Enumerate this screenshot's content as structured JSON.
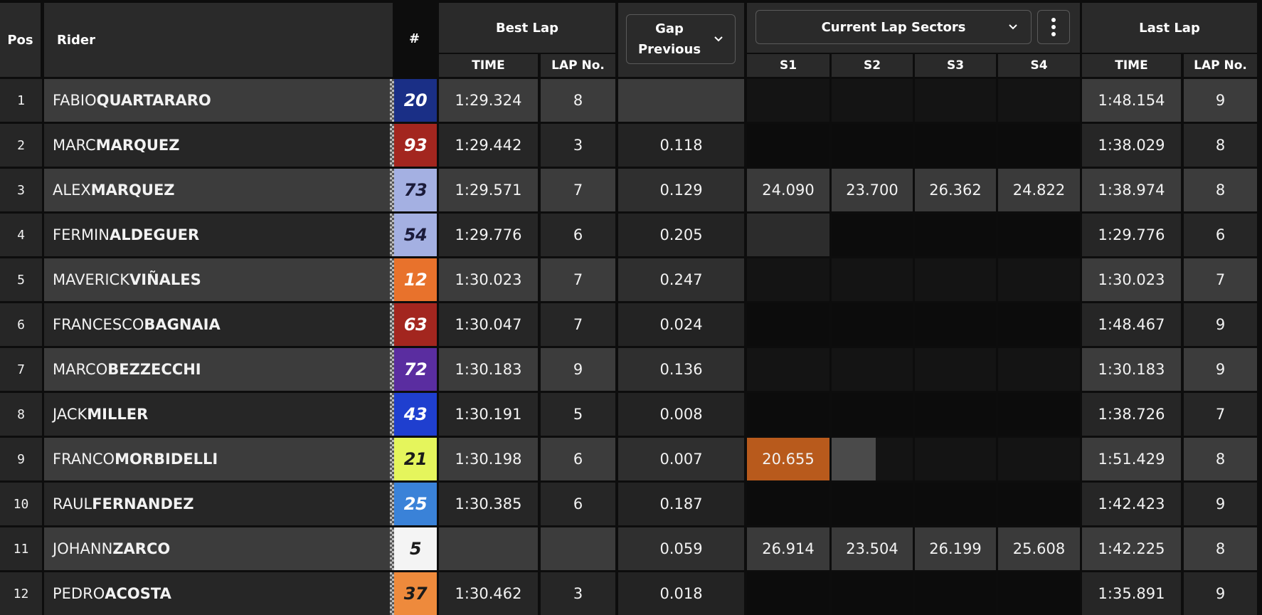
{
  "header": {
    "pos": "Pos",
    "rider": "Rider",
    "number": "#",
    "best_lap": "Best Lap",
    "best_time": "TIME",
    "best_lapno": "LAP No.",
    "gap_line1": "Gap",
    "gap_line2": "Previous",
    "sectors_dropdown": "Current Lap Sectors",
    "s1": "S1",
    "s2": "S2",
    "s3": "S3",
    "s4": "S4",
    "last_lap": "Last Lap",
    "last_time": "TIME",
    "last_lapno": "LAP No."
  },
  "icons": {
    "gap_chevron": "chevron-down-icon",
    "sectors_chevron": "chevron-down-icon",
    "menu": "more-vertical-icon"
  },
  "colors": {
    "personal_best_sector": "#b85a1c",
    "row_dark": "#222222",
    "row_light": "#3a3a3a"
  },
  "rows": [
    {
      "pos": "1",
      "first": "FABIO",
      "last": "QUARTARARO",
      "number": "20",
      "num_bg": "#1a2f86",
      "num_fg": "#ffffff",
      "best_time": "1:29.324",
      "best_lap": "8",
      "gap": "",
      "s1": "",
      "s2": "",
      "s3": "",
      "s4": "",
      "last_time": "1:48.154",
      "last_lap": "9"
    },
    {
      "pos": "2",
      "first": "MARC",
      "last": "MARQUEZ",
      "number": "93",
      "num_bg": "#a3261f",
      "num_fg": "#ffffff",
      "best_time": "1:29.442",
      "best_lap": "3",
      "gap": "0.118",
      "s1": "",
      "s2": "",
      "s3": "",
      "s4": "",
      "last_time": "1:38.029",
      "last_lap": "8"
    },
    {
      "pos": "3",
      "first": "ALEX",
      "last": "MARQUEZ",
      "number": "73",
      "num_bg": "#a4b0e2",
      "num_fg": "#1b1b3a",
      "best_time": "1:29.571",
      "best_lap": "7",
      "gap": "0.129",
      "s1": "24.090",
      "s2": "23.700",
      "s3": "26.362",
      "s4": "24.822",
      "last_time": "1:38.974",
      "last_lap": "8"
    },
    {
      "pos": "4",
      "first": "FERMIN",
      "last": "ALDEGUER",
      "number": "54",
      "num_bg": "#a4b0e2",
      "num_fg": "#1b1b3a",
      "best_time": "1:29.776",
      "best_lap": "6",
      "gap": "0.205",
      "s1": "",
      "s2": "",
      "s3": "",
      "s4": "",
      "last_time": "1:29.776",
      "last_lap": "6"
    },
    {
      "pos": "5",
      "first": "MAVERICK",
      "last": "VIÑALES",
      "number": "12",
      "num_bg": "#e8722c",
      "num_fg": "#ffffff",
      "best_time": "1:30.023",
      "best_lap": "7",
      "gap": "0.247",
      "s1": "",
      "s2": "",
      "s3": "",
      "s4": "",
      "last_time": "1:30.023",
      "last_lap": "7"
    },
    {
      "pos": "6",
      "first": "FRANCESCO",
      "last": "BAGNAIA",
      "number": "63",
      "num_bg": "#a3261f",
      "num_fg": "#ffffff",
      "best_time": "1:30.047",
      "best_lap": "7",
      "gap": "0.024",
      "s1": "",
      "s2": "",
      "s3": "",
      "s4": "",
      "last_time": "1:48.467",
      "last_lap": "9"
    },
    {
      "pos": "7",
      "first": "MARCO",
      "last": "BEZZECCHI",
      "number": "72",
      "num_bg": "#5a2da0",
      "num_fg": "#ffffff",
      "best_time": "1:30.183",
      "best_lap": "9",
      "gap": "0.136",
      "s1": "",
      "s2": "",
      "s3": "",
      "s4": "",
      "last_time": "1:30.183",
      "last_lap": "9"
    },
    {
      "pos": "8",
      "first": "JACK",
      "last": "MILLER",
      "number": "43",
      "num_bg": "#1f3fcf",
      "num_fg": "#ffffff",
      "best_time": "1:30.191",
      "best_lap": "5",
      "gap": "0.008",
      "s1": "",
      "s2": "",
      "s3": "",
      "s4": "",
      "last_time": "1:38.726",
      "last_lap": "7"
    },
    {
      "pos": "9",
      "first": "FRANCO",
      "last": "MORBIDELLI",
      "number": "21",
      "num_bg": "#e5f55c",
      "num_fg": "#1b1b1b",
      "best_time": "1:30.198",
      "best_lap": "6",
      "gap": "0.007",
      "s1": "20.655",
      "s2": "",
      "s3": "",
      "s4": "",
      "last_time": "1:51.429",
      "last_lap": "8"
    },
    {
      "pos": "10",
      "first": "RAUL",
      "last": "FERNANDEZ",
      "number": "25",
      "num_bg": "#3a82d8",
      "num_fg": "#ffffff",
      "best_time": "1:30.385",
      "best_lap": "6",
      "gap": "0.187",
      "s1": "",
      "s2": "",
      "s3": "",
      "s4": "",
      "last_time": "1:42.423",
      "last_lap": "9"
    },
    {
      "pos": "11",
      "first": "JOHANN",
      "last": "ZARCO",
      "number": "5",
      "num_bg": "#f4f4f4",
      "num_fg": "#1b1b1b",
      "best_time": "",
      "best_lap": "",
      "gap": "0.059",
      "s1": "26.914",
      "s2": "23.504",
      "s3": "26.199",
      "s4": "25.608",
      "last_time": "1:42.225",
      "last_lap": "8"
    },
    {
      "pos": "12",
      "first": "PEDRO",
      "last": "ACOSTA",
      "number": "37",
      "num_bg": "#ee8a3c",
      "num_fg": "#1b1b1b",
      "best_time": "1:30.462",
      "best_lap": "3",
      "gap": "0.018",
      "s1": "",
      "s2": "",
      "s3": "",
      "s4": "",
      "last_time": "1:35.891",
      "last_lap": "9"
    }
  ]
}
